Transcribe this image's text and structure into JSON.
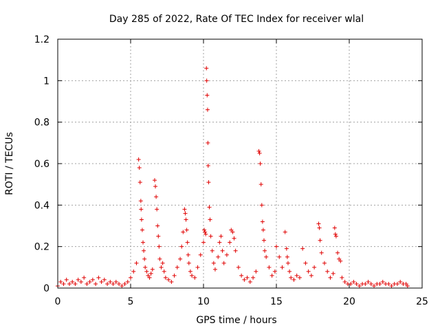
{
  "chart_data": {
    "type": "scatter",
    "title": "Day 285 of 2022, Rate Of TEC Index for receiver wlal",
    "xlabel": "GPS time / hours",
    "ylabel": "ROTI / TECUs",
    "xlim": [
      0,
      25
    ],
    "ylim": [
      0,
      1.2
    ],
    "xticks": [
      "0",
      "5",
      "10",
      "15",
      "20",
      "25"
    ],
    "yticks": [
      "0",
      "0.2",
      "0.4",
      "0.6",
      "0.8",
      "1",
      "1.2"
    ],
    "xtick_values": [
      0,
      5,
      10,
      15,
      20,
      25
    ],
    "ytick_values": [
      0,
      0.2,
      0.4,
      0.6,
      0.8,
      1.0,
      1.2
    ],
    "grid": true,
    "marker": "+",
    "color": "#e00000",
    "series": [
      {
        "x": [
          0.0,
          0.2,
          0.4,
          0.6,
          0.8,
          1.0,
          1.2,
          1.4,
          1.6,
          1.8,
          2.0,
          2.2,
          2.4,
          2.6,
          2.8,
          3.0,
          3.2,
          3.4,
          3.6,
          3.8,
          4.0,
          4.2,
          4.4,
          4.6,
          4.8,
          5.0,
          5.2,
          5.4,
          5.55,
          5.6,
          5.65,
          5.7,
          5.72,
          5.75,
          5.8,
          5.85,
          5.9,
          5.95,
          6.0,
          6.1,
          6.2,
          6.3,
          6.4,
          6.5,
          6.65,
          6.7,
          6.75,
          6.8,
          6.85,
          6.9,
          6.95,
          7.0,
          7.1,
          7.2,
          7.3,
          7.4,
          7.6,
          7.8,
          8.0,
          8.2,
          8.4,
          8.5,
          8.6,
          8.7,
          8.75,
          8.8,
          8.85,
          8.9,
          8.95,
          9.0,
          9.1,
          9.2,
          9.4,
          9.6,
          9.8,
          10.0,
          10.05,
          10.1,
          10.15,
          10.2,
          10.22,
          10.25,
          10.28,
          10.3,
          10.32,
          10.35,
          10.4,
          10.45,
          10.5,
          10.6,
          10.7,
          10.8,
          11.0,
          11.1,
          11.2,
          11.3,
          11.4,
          11.6,
          11.8,
          11.9,
          12.0,
          12.1,
          12.2,
          12.4,
          12.6,
          12.8,
          13.0,
          13.2,
          13.4,
          13.6,
          13.8,
          13.85,
          13.9,
          13.95,
          14.0,
          14.05,
          14.1,
          14.15,
          14.2,
          14.3,
          14.5,
          14.7,
          14.9,
          15.0,
          15.2,
          15.4,
          15.6,
          15.7,
          15.75,
          15.8,
          15.9,
          16.0,
          16.2,
          16.4,
          16.6,
          16.8,
          17.0,
          17.2,
          17.4,
          17.6,
          17.9,
          17.95,
          18.0,
          18.1,
          18.3,
          18.5,
          18.7,
          18.9,
          19.0,
          19.05,
          19.1,
          19.2,
          19.3,
          19.4,
          19.5,
          19.7,
          19.9,
          20.1,
          20.3,
          20.5,
          20.7,
          20.9,
          21.1,
          21.3,
          21.5,
          21.7,
          21.9,
          22.1,
          22.3,
          22.5,
          22.7,
          22.9,
          23.1,
          23.3,
          23.5,
          23.7,
          23.9,
          24.0
        ],
        "y": [
          0.01,
          0.03,
          0.02,
          0.04,
          0.02,
          0.03,
          0.02,
          0.04,
          0.03,
          0.05,
          0.02,
          0.03,
          0.04,
          0.02,
          0.05,
          0.03,
          0.04,
          0.02,
          0.03,
          0.02,
          0.03,
          0.02,
          0.01,
          0.02,
          0.03,
          0.05,
          0.08,
          0.12,
          0.62,
          0.58,
          0.51,
          0.42,
          0.38,
          0.33,
          0.28,
          0.22,
          0.18,
          0.14,
          0.1,
          0.08,
          0.06,
          0.05,
          0.07,
          0.09,
          0.52,
          0.49,
          0.44,
          0.38,
          0.3,
          0.25,
          0.2,
          0.14,
          0.1,
          0.12,
          0.08,
          0.05,
          0.04,
          0.03,
          0.06,
          0.1,
          0.14,
          0.2,
          0.27,
          0.38,
          0.36,
          0.33,
          0.28,
          0.22,
          0.16,
          0.12,
          0.08,
          0.06,
          0.05,
          0.1,
          0.16,
          0.22,
          0.28,
          0.27,
          0.26,
          1.06,
          1.0,
          0.93,
          0.86,
          0.7,
          0.59,
          0.51,
          0.39,
          0.33,
          0.25,
          0.18,
          0.12,
          0.09,
          0.15,
          0.22,
          0.25,
          0.18,
          0.12,
          0.16,
          0.22,
          0.28,
          0.27,
          0.24,
          0.18,
          0.1,
          0.06,
          0.04,
          0.05,
          0.03,
          0.05,
          0.08,
          0.66,
          0.65,
          0.6,
          0.5,
          0.4,
          0.32,
          0.28,
          0.23,
          0.18,
          0.15,
          0.1,
          0.06,
          0.08,
          0.2,
          0.15,
          0.1,
          0.27,
          0.19,
          0.15,
          0.12,
          0.08,
          0.05,
          0.04,
          0.06,
          0.05,
          0.19,
          0.12,
          0.08,
          0.06,
          0.1,
          0.31,
          0.29,
          0.23,
          0.17,
          0.12,
          0.08,
          0.05,
          0.07,
          0.29,
          0.26,
          0.25,
          0.17,
          0.14,
          0.13,
          0.05,
          0.03,
          0.02,
          0.02,
          0.03,
          0.02,
          0.01,
          0.02,
          0.02,
          0.03,
          0.02,
          0.01,
          0.02,
          0.02,
          0.03,
          0.02,
          0.02,
          0.01,
          0.02,
          0.02,
          0.03,
          0.02,
          0.02,
          0.01
        ]
      }
    ]
  }
}
